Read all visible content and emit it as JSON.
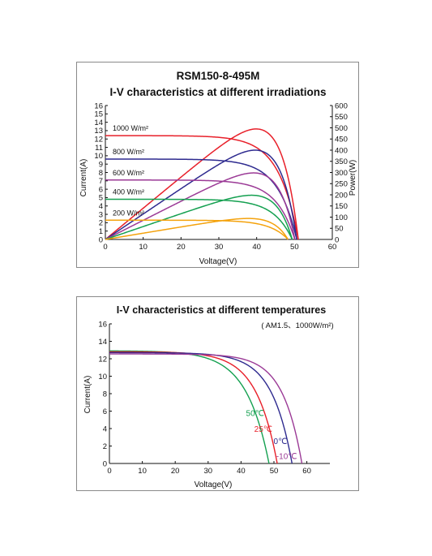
{
  "chart_data": [
    {
      "type": "line",
      "title": "RSM150-8-495M",
      "subtitle": "I-V characteristics at different irradiations",
      "xlabel": "Voltage(V)",
      "ylabel": "Current(A)",
      "y2label": "Power(W)",
      "xlim": [
        0,
        60
      ],
      "ylim": [
        0,
        16
      ],
      "y2lim": [
        0,
        600
      ],
      "xticks": [
        0,
        10,
        20,
        30,
        40,
        50,
        60
      ],
      "yticks": [
        0,
        1,
        2,
        3,
        4,
        5,
        6,
        7,
        8,
        9,
        10,
        11,
        12,
        13,
        14,
        15,
        16
      ],
      "y2ticks": [
        0,
        50,
        100,
        150,
        200,
        250,
        300,
        350,
        400,
        450,
        500,
        550,
        600
      ],
      "grid": false,
      "series": [
        {
          "name": "1000 W/m²",
          "color": "#e8202a",
          "voc": 51.0,
          "isc": 12.4,
          "shape": 10,
          "pmax": 495,
          "vmp": 41.5
        },
        {
          "name": "800 W/m²",
          "color": "#2e2a8f",
          "voc": 50.6,
          "isc": 9.6,
          "shape": 10,
          "pmax": 400,
          "vmp": 41.5
        },
        {
          "name": "600 W/m²",
          "color": "#9b3a96",
          "voc": 50.1,
          "isc": 7.1,
          "shape": 10,
          "pmax": 298,
          "vmp": 41.0
        },
        {
          "name": "400 W/m²",
          "color": "#14a050",
          "voc": 49.4,
          "isc": 4.8,
          "shape": 10,
          "pmax": 198,
          "vmp": 41.0
        },
        {
          "name": "200 W/m²",
          "color": "#f4a20c",
          "voc": 48.3,
          "isc": 2.3,
          "shape": 10,
          "pmax": 94,
          "vmp": 40.5
        }
      ]
    },
    {
      "type": "line",
      "title": "I-V characteristics at different temperatures",
      "subtitle": "( AM1.5、1000W/m²)",
      "xlabel": "Voltage(V)",
      "ylabel": "Current(A)",
      "xlim": [
        0,
        67
      ],
      "ylim": [
        0,
        16
      ],
      "xticks": [
        0,
        10,
        20,
        30,
        40,
        50,
        60
      ],
      "yticks": [
        0,
        2,
        4,
        6,
        8,
        10,
        12,
        14,
        16
      ],
      "grid": false,
      "series": [
        {
          "name": "50℃",
          "color": "#14a050",
          "voc": 48.5,
          "isc": 12.9,
          "shape": 7
        },
        {
          "name": "25℃",
          "color": "#e8202a",
          "voc": 51.0,
          "isc": 12.8,
          "shape": 8
        },
        {
          "name": "0℃",
          "color": "#2e2a8f",
          "voc": 55.5,
          "isc": 12.7,
          "shape": 9
        },
        {
          "name": "-10℃",
          "color": "#9b3a96",
          "voc": 58.5,
          "isc": 12.55,
          "shape": 10
        }
      ]
    }
  ]
}
